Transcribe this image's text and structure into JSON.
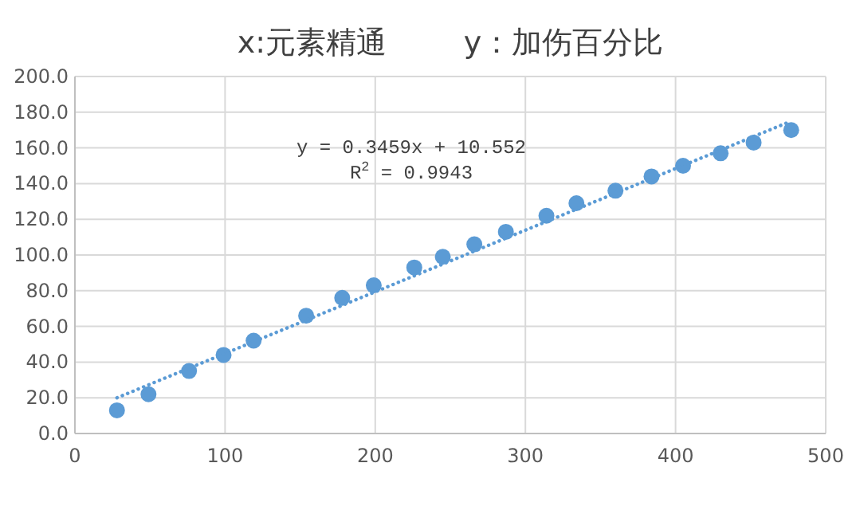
{
  "chart_data": {
    "type": "scatter",
    "title": "x:元素精通        y：加伤百分比",
    "series": [
      {
        "color": "#5b9bd5",
        "marker": "circle",
        "x": [
          28,
          49,
          76,
          99,
          119,
          154,
          178,
          199,
          226,
          245,
          266,
          287,
          314,
          334,
          360,
          384,
          405,
          430,
          452,
          477
        ],
        "values": [
          13,
          22,
          35,
          44,
          52,
          66,
          76,
          83,
          93,
          99,
          106,
          113,
          122,
          129,
          136,
          144,
          150,
          157,
          163,
          170
        ]
      },
      {
        "type": "line",
        "color": "#5b9bd5",
        "line_style": "dotted",
        "marker": "none",
        "x": [
          28,
          477
        ],
        "values": [
          20,
          175
        ]
      }
    ],
    "annotations": [
      "y = 0.3459x + 10.552",
      "R$^{2}$ = 0.9943"
    ],
    "xlim": [
      0,
      500
    ],
    "xticks": [
      0,
      100,
      200,
      300,
      400,
      500
    ],
    "ylim": [
      0,
      200
    ],
    "yticks": [
      {
        "value": 0,
        "label": "0.0"
      },
      {
        "value": 20,
        "label": "20.0"
      },
      {
        "value": 40,
        "label": "40.0"
      },
      {
        "value": 60,
        "label": "60.0"
      },
      {
        "value": 80,
        "label": "80.0"
      },
      {
        "value": 100,
        "label": "100.0"
      },
      {
        "value": 120,
        "label": "120.0"
      },
      {
        "value": 140,
        "label": "140.0"
      },
      {
        "value": 160,
        "label": "160.0"
      },
      {
        "value": 180,
        "label": "180.0"
      },
      {
        "value": 200,
        "label": "200.0"
      }
    ],
    "grid": true
  }
}
